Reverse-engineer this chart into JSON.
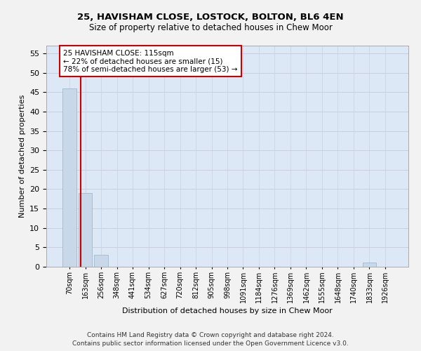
{
  "title1": "25, HAVISHAM CLOSE, LOSTOCK, BOLTON, BL6 4EN",
  "title2": "Size of property relative to detached houses in Chew Moor",
  "xlabel": "Distribution of detached houses by size in Chew Moor",
  "ylabel": "Number of detached properties",
  "footnote1": "Contains HM Land Registry data © Crown copyright and database right 2024.",
  "footnote2": "Contains public sector information licensed under the Open Government Licence v3.0.",
  "bar_labels": [
    "70sqm",
    "163sqm",
    "256sqm",
    "348sqm",
    "441sqm",
    "534sqm",
    "627sqm",
    "720sqm",
    "812sqm",
    "905sqm",
    "998sqm",
    "1091sqm",
    "1184sqm",
    "1276sqm",
    "1369sqm",
    "1462sqm",
    "1555sqm",
    "1648sqm",
    "1740sqm",
    "1833sqm",
    "1926sqm"
  ],
  "bar_values": [
    46,
    19,
    3,
    0,
    0,
    0,
    0,
    0,
    0,
    0,
    0,
    0,
    0,
    0,
    0,
    0,
    0,
    0,
    0,
    1,
    0
  ],
  "bar_color": "#c8d8e8",
  "bar_edge_color": "#a0b8cc",
  "grid_color": "#c8d0e0",
  "background_color": "#dce8f5",
  "figure_color": "#f2f2f2",
  "ylim": [
    0,
    57
  ],
  "yticks": [
    0,
    5,
    10,
    15,
    20,
    25,
    30,
    35,
    40,
    45,
    50,
    55
  ],
  "red_line_x": 0.73,
  "annotation_text": "25 HAVISHAM CLOSE: 115sqm\n← 22% of detached houses are smaller (15)\n78% of semi-detached houses are larger (53) →",
  "annotation_box_color": "#ffffff",
  "annotation_box_edge_color": "#cc0000",
  "red_line_color": "#cc0000",
  "title1_fontsize": 9.5,
  "title2_fontsize": 8.5,
  "annot_fontsize": 7.5,
  "xlabel_fontsize": 8,
  "ylabel_fontsize": 8,
  "tick_fontsize": 7,
  "ytick_fontsize": 8,
  "footnote_fontsize": 6.5
}
